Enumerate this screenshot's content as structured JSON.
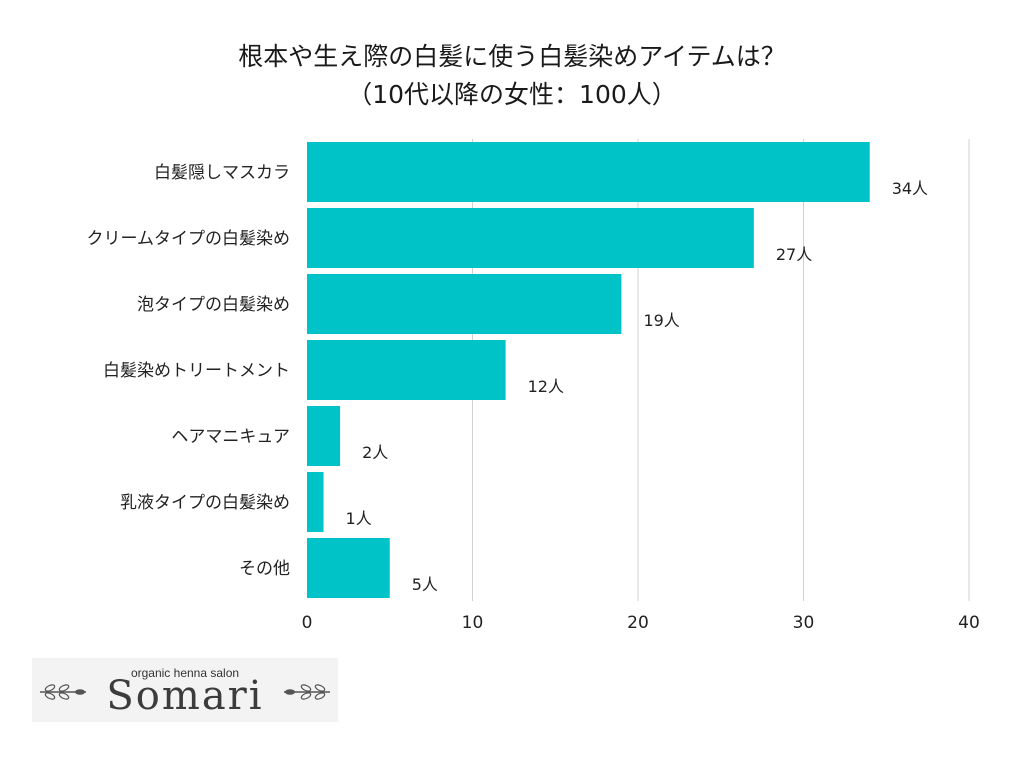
{
  "title": {
    "line1": "根本や生え際の白髪に使う白髪染めアイテムは？",
    "line2": "（10代以降の女性：100人）"
  },
  "colors": {
    "bar": "#00c3c8",
    "grid": "#d0d0d0"
  },
  "chart_data": {
    "type": "bar",
    "orientation": "horizontal",
    "categories": [
      "白髪隠しマスカラ",
      "クリームタイプの白髪染め",
      "泡タイプの白髪染め",
      "白髪染めトリートメント",
      "ヘアマニキュア",
      "乳液タイプの白髪染め",
      "その他"
    ],
    "values": [
      34,
      27,
      19,
      12,
      2,
      1,
      5
    ],
    "value_labels": [
      "34人",
      "27人",
      "19人",
      "12人",
      "2人",
      "1人",
      "5人"
    ],
    "xlim": [
      0,
      40
    ],
    "xticks": [
      0,
      10,
      20,
      30,
      40
    ],
    "xtick_labels": [
      "0",
      "10",
      "20",
      "30",
      "40"
    ],
    "grid": true
  },
  "logo": {
    "tagline": "organic henna salon",
    "name": "Somari"
  }
}
